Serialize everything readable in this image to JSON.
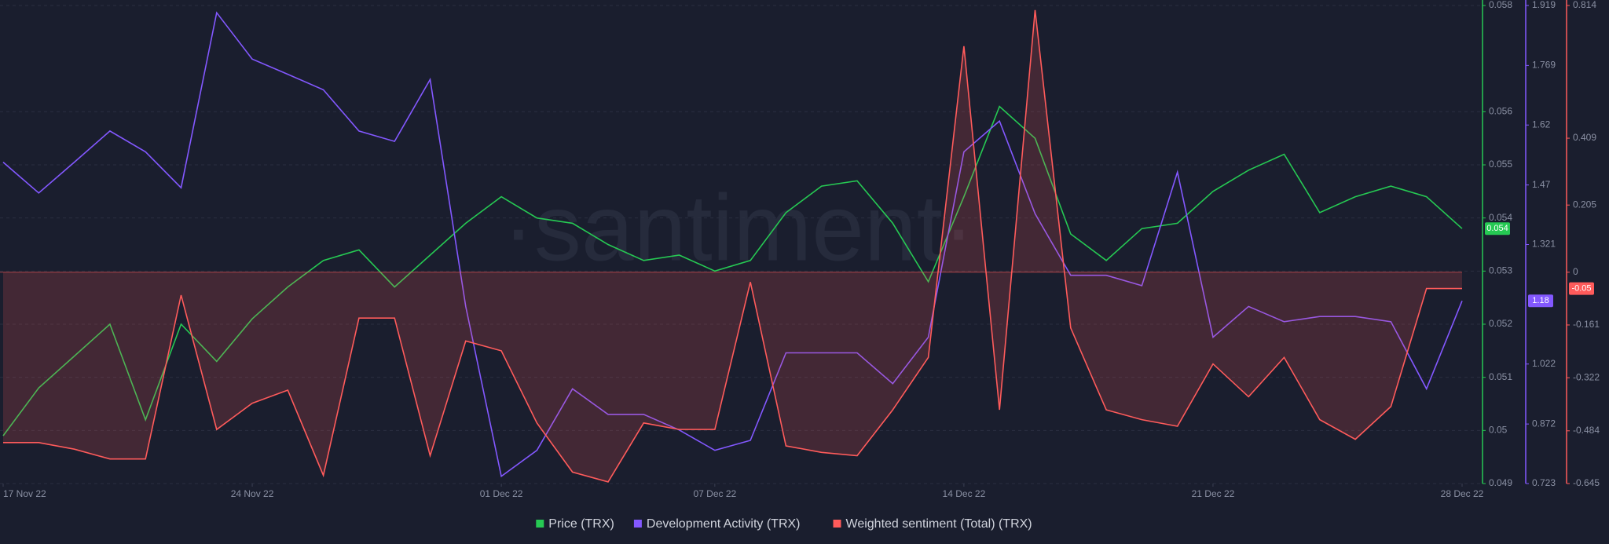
{
  "chart_data": {
    "type": "line",
    "watermark": "·santiment·",
    "x": [
      "17 Nov 22",
      "18 Nov 22",
      "19 Nov 22",
      "20 Nov 22",
      "21 Nov 22",
      "22 Nov 22",
      "23 Nov 22",
      "24 Nov 22",
      "25 Nov 22",
      "26 Nov 22",
      "27 Nov 22",
      "28 Nov 22",
      "29 Nov 22",
      "30 Nov 22",
      "01 Dec 22",
      "02 Dec 22",
      "03 Dec 22",
      "04 Dec 22",
      "05 Dec 22",
      "06 Dec 22",
      "07 Dec 22",
      "08 Dec 22",
      "09 Dec 22",
      "10 Dec 22",
      "11 Dec 22",
      "12 Dec 22",
      "13 Dec 22",
      "14 Dec 22",
      "15 Dec 22",
      "16 Dec 22",
      "17 Dec 22",
      "18 Dec 22",
      "19 Dec 22",
      "20 Dec 22",
      "21 Dec 22",
      "22 Dec 22",
      "23 Dec 22",
      "24 Dec 22",
      "25 Dec 22",
      "26 Dec 22",
      "27 Dec 22",
      "28 Dec 22"
    ],
    "xticks": [
      "17 Nov 22",
      "24 Nov 22",
      "01 Dec 22",
      "07 Dec 22",
      "14 Dec 22",
      "21 Dec 22",
      "28 Dec 22"
    ],
    "grid": true,
    "series": [
      {
        "name": "Price (TRX)",
        "color": "#26c953",
        "axis": "y",
        "last_value_label": "0.054",
        "values": [
          0.0499,
          0.0508,
          0.0514,
          0.052,
          0.0502,
          0.052,
          0.0513,
          0.0521,
          0.0527,
          0.0532,
          0.0534,
          0.0527,
          0.0533,
          0.0539,
          0.0544,
          0.054,
          0.0539,
          0.0535,
          0.0532,
          0.0533,
          0.053,
          0.0532,
          0.0541,
          0.0546,
          0.0547,
          0.0539,
          0.0528,
          0.0544,
          0.0561,
          0.0555,
          0.0537,
          0.0532,
          0.0538,
          0.0539,
          0.0545,
          0.0549,
          0.0552,
          0.0541,
          0.0544,
          0.0546,
          0.0544,
          0.0538
        ]
      },
      {
        "name": "Development Activity (TRX)",
        "color": "#8358ff",
        "axis": "y2",
        "last_value_label": "1.18",
        "values": [
          1.527,
          1.45,
          1.527,
          1.605,
          1.553,
          1.463,
          1.901,
          1.785,
          1.747,
          1.708,
          1.605,
          1.579,
          1.734,
          1.166,
          0.741,
          0.806,
          0.96,
          0.896,
          0.896,
          0.857,
          0.806,
          0.831,
          1.05,
          1.05,
          1.05,
          0.973,
          1.089,
          1.553,
          1.63,
          1.398,
          1.244,
          1.244,
          1.218,
          1.502,
          1.089,
          1.166,
          1.128,
          1.141,
          1.141,
          1.128,
          0.96,
          1.18
        ]
      },
      {
        "name": "Weighted sentiment (Total) (TRX)",
        "color": "#ff5b5b",
        "axis": "y3",
        "last_value_label": "-0.05",
        "values": [
          -0.52,
          -0.52,
          -0.54,
          -0.57,
          -0.57,
          -0.07,
          -0.48,
          -0.4,
          -0.36,
          -0.62,
          -0.14,
          -0.14,
          -0.56,
          -0.21,
          -0.24,
          -0.46,
          -0.61,
          -0.64,
          -0.46,
          -0.48,
          -0.48,
          -0.03,
          -0.53,
          -0.55,
          -0.56,
          -0.42,
          -0.26,
          0.69,
          -0.42,
          0.8,
          -0.17,
          -0.42,
          -0.45,
          -0.47,
          -0.28,
          -0.38,
          -0.26,
          -0.45,
          -0.51,
          -0.41,
          -0.05,
          -0.05
        ]
      }
    ],
    "ylim": [
      0.049,
      0.058
    ],
    "yticks": [
      0.049,
      0.05,
      0.051,
      0.052,
      0.053,
      0.054,
      0.055,
      0.056,
      0.058
    ],
    "y2lim": [
      0.723,
      1.919
    ],
    "y2ticks": [
      0.723,
      0.872,
      1.022,
      1.321,
      1.47,
      1.62,
      1.769,
      1.919
    ],
    "y3lim": [
      -0.645,
      0.814
    ],
    "y3ticks": [
      -0.645,
      -0.484,
      -0.322,
      -0.161,
      0,
      0.205,
      0.409,
      0.814
    ]
  }
}
